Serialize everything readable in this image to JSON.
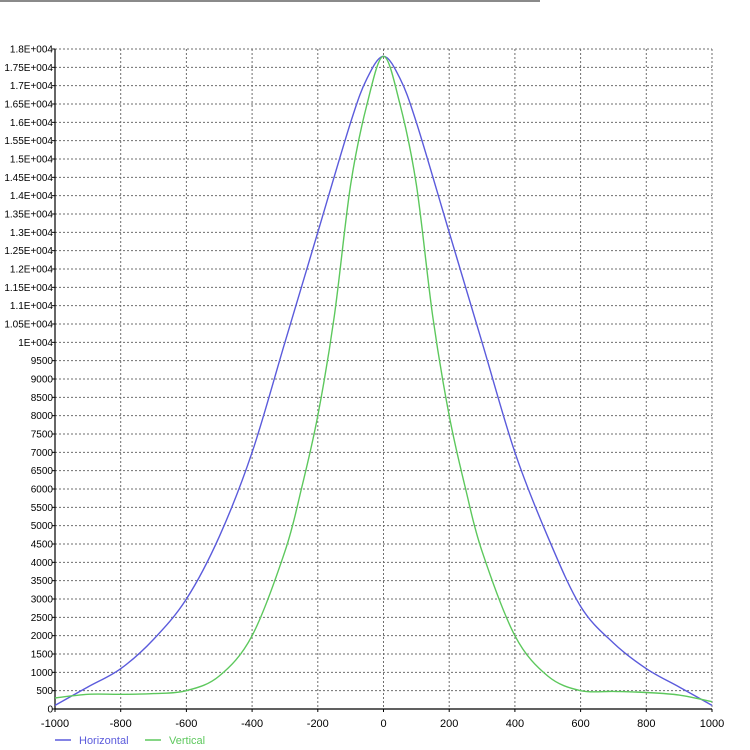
{
  "chart_data": {
    "type": "line",
    "title": "",
    "xlabel": "",
    "ylabel": "",
    "xlim": [
      -1000,
      1000
    ],
    "ylim": [
      0,
      18000
    ],
    "x_ticks": [
      -1000,
      -800,
      -600,
      -400,
      -200,
      0,
      200,
      400,
      600,
      800,
      1000
    ],
    "x_tick_labels": [
      "-1000",
      "-800",
      "-600",
      "-400",
      "-200",
      "0",
      "200",
      "400",
      "600",
      "800",
      "1000"
    ],
    "y_ticks": [
      0,
      500,
      1000,
      1500,
      2000,
      2500,
      3000,
      3500,
      4000,
      4500,
      5000,
      5500,
      6000,
      6500,
      7000,
      7500,
      8000,
      8500,
      9000,
      9500,
      10000,
      10500,
      11000,
      11500,
      12000,
      12500,
      13000,
      13500,
      14000,
      14500,
      15000,
      15500,
      16000,
      16500,
      17000,
      17500,
      18000
    ],
    "y_tick_labels": [
      "0",
      "500",
      "1000",
      "1500",
      "2000",
      "2500",
      "3000",
      "3500",
      "4000",
      "4500",
      "5000",
      "5500",
      "6000",
      "6500",
      "7000",
      "7500",
      "8000",
      "8500",
      "9000",
      "9500",
      "1E+004",
      "1.05E+004",
      "1.1E+004",
      "1.15E+004",
      "1.2E+004",
      "1.25E+004",
      "1.3E+004",
      "1.35E+004",
      "1.4E+004",
      "1.45E+004",
      "1.5E+004",
      "1.55E+004",
      "1.6E+004",
      "1.65E+004",
      "1.7E+004",
      "1.75E+004",
      "1.8E+004"
    ],
    "grid": true,
    "legend_position": "bottom-left",
    "series": [
      {
        "name": "Horizontal",
        "color": "#5b5bdc",
        "x": [
          -1000,
          -900,
          -800,
          -700,
          -600,
          -500,
          -400,
          -300,
          -200,
          -100,
          -50,
          0,
          50,
          100,
          200,
          300,
          400,
          500,
          600,
          700,
          800,
          900,
          1000
        ],
        "y": [
          100,
          600,
          1100,
          1900,
          3000,
          4700,
          7000,
          10000,
          13000,
          16000,
          17200,
          17800,
          17200,
          16000,
          13000,
          10000,
          7000,
          4700,
          2800,
          1800,
          1100,
          600,
          100
        ]
      },
      {
        "name": "Vertical",
        "color": "#5dc85d",
        "x": [
          -1000,
          -900,
          -800,
          -700,
          -600,
          -500,
          -400,
          -300,
          -250,
          -200,
          -150,
          -100,
          -50,
          0,
          50,
          100,
          150,
          200,
          250,
          300,
          400,
          500,
          600,
          700,
          800,
          900,
          1000
        ],
        "y": [
          300,
          400,
          400,
          420,
          500,
          900,
          2000,
          4300,
          6000,
          8000,
          10700,
          14300,
          16500,
          17800,
          16500,
          14300,
          10700,
          8000,
          6000,
          4300,
          2000,
          900,
          500,
          480,
          450,
          380,
          200
        ]
      }
    ]
  }
}
